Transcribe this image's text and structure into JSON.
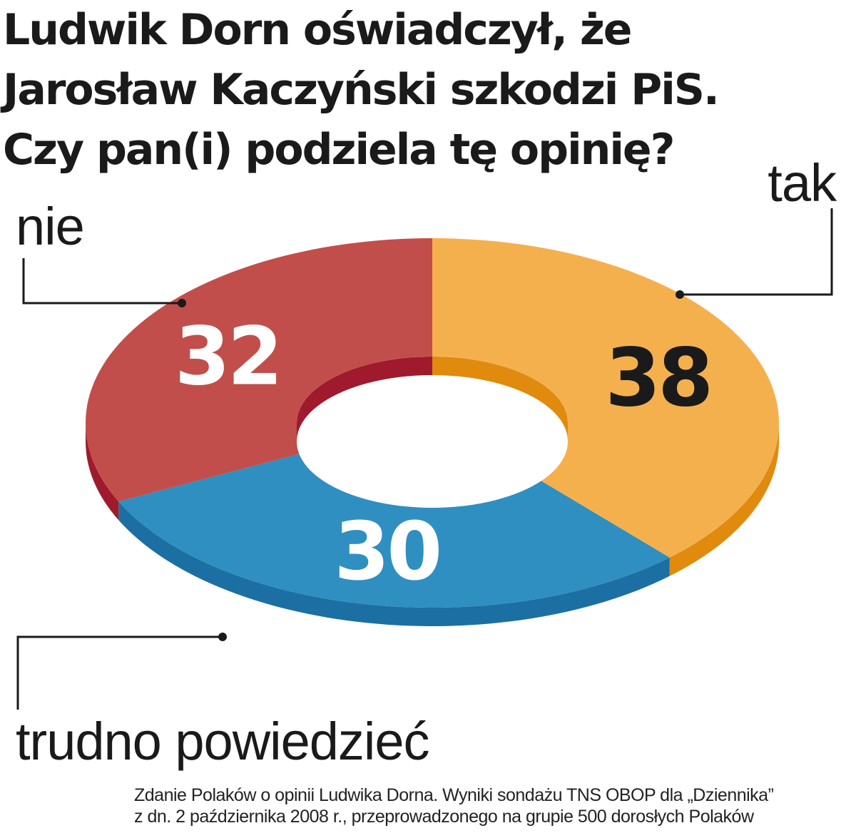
{
  "title": "Ludwik Dorn oświadczył, że Jarosław Kaczyński szkodzi PiS. Czy pan(i) podziela tę opinię?",
  "footer": {
    "line1": "Zdanie Polaków o opinii Ludwika Dorna. Wyniki sondażu  TNS OBOP dla „Dziennika”",
    "line2": "z dn. 2 października 2008 r., przeprowadzonego na grupie 500 dorosłych Polaków"
  },
  "chart_data": {
    "type": "pie",
    "variant": "3d-donut",
    "unit": "%",
    "categories": [
      "tak",
      "trudno powiedzieć",
      "nie"
    ],
    "values": [
      38,
      30,
      32
    ],
    "colors": {
      "tak": "#f5b04e",
      "trudno powiedzieć": "#2f8fc0",
      "nie": "#c24e4b"
    },
    "side_colors": {
      "tak": "#e08a0e",
      "trudno powiedzieć": "#1c6fa2",
      "nie": "#9e1a2c"
    },
    "label_colors": {
      "tak": "#1a1a1a",
      "trudno powiedzieć": "#ffffff",
      "nie": "#ffffff"
    }
  }
}
